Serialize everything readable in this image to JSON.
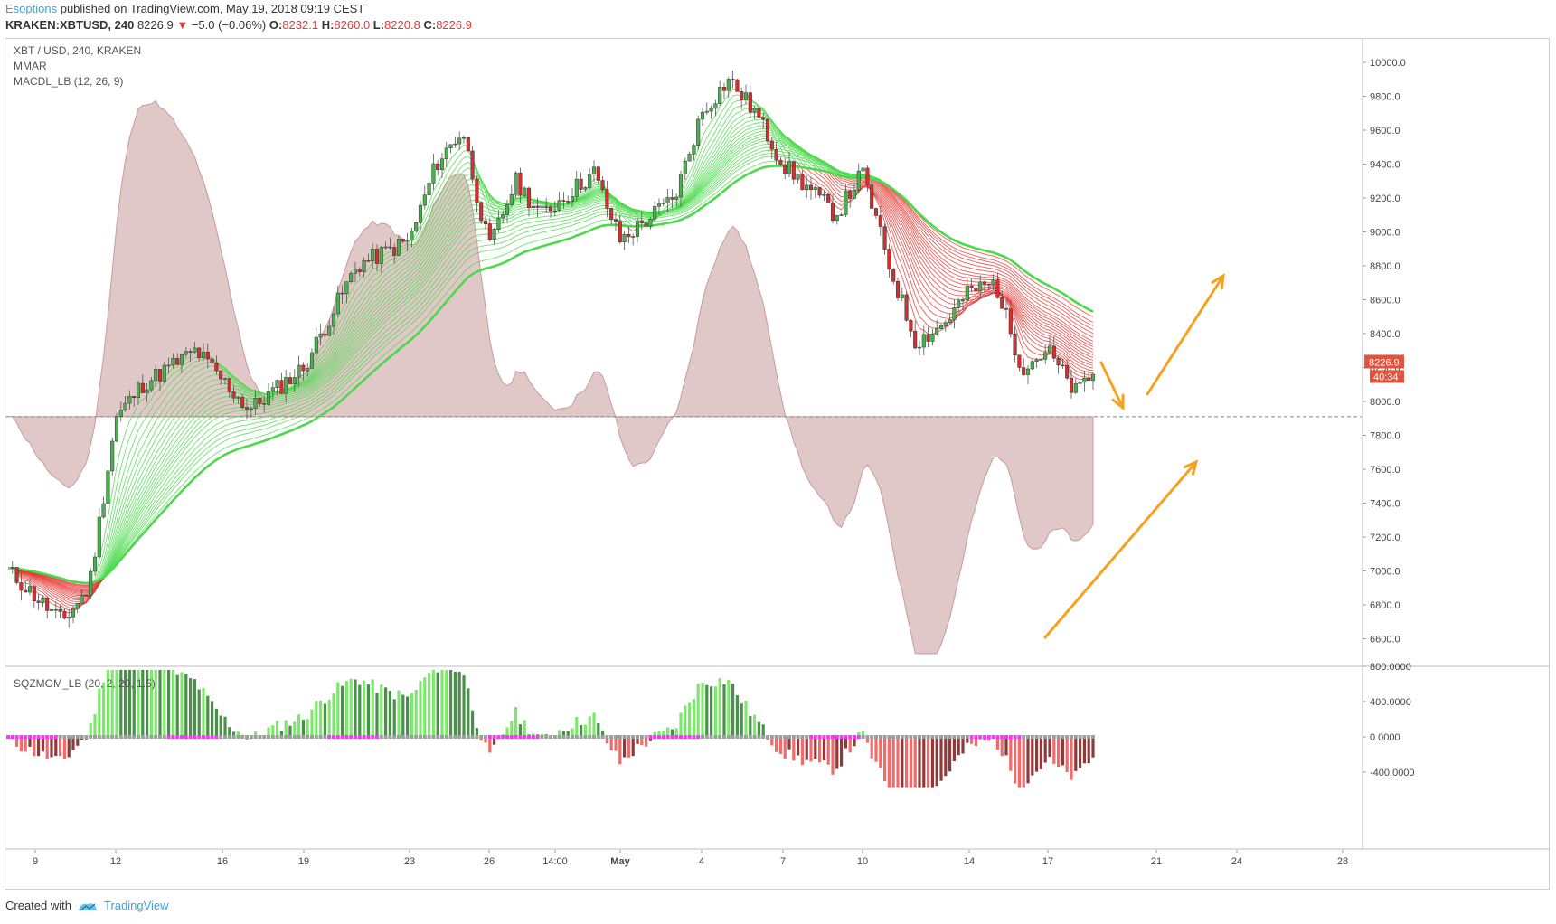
{
  "header": {
    "author": "Esoptions",
    "published_text": "published on TradingView.com, May 19, 2018 09:19 CEST",
    "symbol": "KRAKEN:XBTUSD, 240",
    "last": "8226.9",
    "change_arrow": "▼",
    "change": "−5.0 (−0.06%)",
    "o_label": "O:",
    "o_value": "8232.1",
    "h_label": "H:",
    "h_value": "8260.0",
    "l_label": "L:",
    "l_value": "8220.8",
    "c_label": "C:",
    "c_value": "8226.9"
  },
  "legend": {
    "pair": "XBT / USD, 240, KRAKEN",
    "indicator1": "MMAR",
    "indicator2": "MACDL_LB (12, 26, 9)",
    "indicator3": "SQZMOM_LB (20, 2, 20, 1.5)"
  },
  "price_axis": {
    "ticks": [
      "10000.0",
      "9800.0",
      "9600.0",
      "9400.0",
      "9200.0",
      "9000.0",
      "8800.0",
      "8600.0",
      "8400.0",
      "8200.0",
      "8000.0",
      "7800.0",
      "7600.0",
      "7400.0",
      "7200.0",
      "7000.0",
      "6800.0",
      "6600.0"
    ],
    "last_price_tag": "8226.9",
    "countdown_tag": "40:34",
    "tag_color": "#e0533e"
  },
  "osc_axis": {
    "ticks": [
      "800.0000",
      "400.0000",
      "0.0000",
      "-400.0000"
    ]
  },
  "time_axis": {
    "labels": [
      "9",
      "12",
      "16",
      "19",
      "23",
      "26",
      "14:00",
      "May",
      "4",
      "7",
      "10",
      "14",
      "17",
      "21",
      "24",
      "28"
    ]
  },
  "chart_data": {
    "type": "candlestick",
    "symbol": "XBT / USD",
    "interval": "240",
    "ylim": [
      6500,
      10100
    ],
    "reference_level": 7910,
    "approx_close_path": [
      {
        "date": "Apr 8",
        "price": 7000
      },
      {
        "date": "Apr 10",
        "price": 6700
      },
      {
        "date": "Apr 11",
        "price": 6900
      },
      {
        "date": "Apr 12",
        "price": 7900
      },
      {
        "date": "Apr 13",
        "price": 8100
      },
      {
        "date": "Apr 15",
        "price": 8300
      },
      {
        "date": "Apr 17",
        "price": 7950
      },
      {
        "date": "Apr 19",
        "price": 8200
      },
      {
        "date": "Apr 21",
        "price": 8800
      },
      {
        "date": "Apr 23",
        "price": 8950
      },
      {
        "date": "Apr 24",
        "price": 9400
      },
      {
        "date": "Apr 25",
        "price": 9600
      },
      {
        "date": "Apr 26",
        "price": 8900
      },
      {
        "date": "Apr 27",
        "price": 9300
      },
      {
        "date": "Apr 28",
        "price": 9100
      },
      {
        "date": "Apr 30",
        "price": 9350
      },
      {
        "date": "May 1",
        "price": 8950
      },
      {
        "date": "May 3",
        "price": 9200
      },
      {
        "date": "May 4",
        "price": 9700
      },
      {
        "date": "May 5",
        "price": 9900
      },
      {
        "date": "May 6",
        "price": 9700
      },
      {
        "date": "May 7",
        "price": 9400
      },
      {
        "date": "May 8",
        "price": 9250
      },
      {
        "date": "May 9",
        "price": 9100
      },
      {
        "date": "May 10",
        "price": 9350
      },
      {
        "date": "May 11",
        "price": 8800
      },
      {
        "date": "May 12",
        "price": 8350
      },
      {
        "date": "May 13",
        "price": 8450
      },
      {
        "date": "May 14",
        "price": 8650
      },
      {
        "date": "May 15",
        "price": 8700
      },
      {
        "date": "May 16",
        "price": 8200
      },
      {
        "date": "May 17",
        "price": 8300
      },
      {
        "date": "May 18",
        "price": 8050
      },
      {
        "date": "May 19",
        "price": 8226.9
      }
    ],
    "colors": {
      "up_candle": "#4caf50",
      "down_candle": "#d32f2f",
      "ma_up": "#4cd94c",
      "ma_down": "#e53935",
      "macd_fill": "#c99a9a",
      "sqz_pos_bright": "#7ee86e",
      "sqz_pos_dark": "#4a8f4a",
      "sqz_neg_bright": "#f26a6a",
      "sqz_neg_dark": "#8f3a3a",
      "sqz_dot": "#ff33ff",
      "arrow": "#f5a21f"
    }
  },
  "footer": {
    "created_with": "Created with",
    "brand": "TradingView"
  }
}
